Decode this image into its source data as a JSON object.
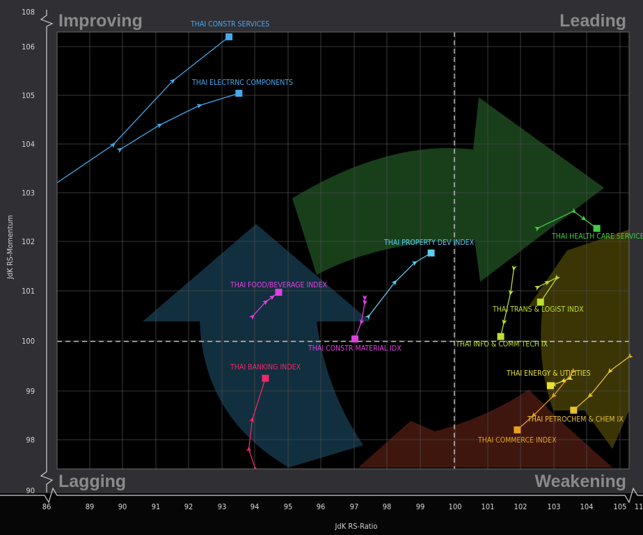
{
  "chart_data": {
    "type": "scatter",
    "variant": "relative-rotation-graph",
    "xlabel": "JdK RS-Ratio",
    "ylabel": "JdK RS-Momentum",
    "xlim": [
      86,
      105.5
    ],
    "ylim": [
      97.3,
      107
    ],
    "x_ticks": [
      "86",
      "89",
      "90",
      "91",
      "92",
      "93",
      "94",
      "95",
      "96",
      "97",
      "98",
      "99",
      "100",
      "101",
      "102",
      "103",
      "104",
      "105",
      "11"
    ],
    "y_ticks": [
      "98",
      "99",
      "100",
      "101",
      "102",
      "103",
      "104",
      "105",
      "106",
      "108"
    ],
    "y_axis_break_label": "90",
    "quadrants": {
      "top_left": "Improving",
      "top_right": "Leading",
      "bottom_left": "Lagging",
      "bottom_right": "Weakening"
    },
    "center": {
      "x": 100,
      "y": 100
    },
    "grid": true,
    "series": [
      {
        "name": "THAI CONSTR SERVICES",
        "color": "#46a8ec",
        "points": [
          [
            86.2,
            102.4
          ],
          [
            89.7,
            104.0
          ],
          [
            91.5,
            105.3
          ],
          [
            93.2,
            106.2
          ]
        ]
      },
      {
        "name": "THAI ELECTRNC COMPONENTS",
        "color": "#46a8ec",
        "points": [
          [
            89.9,
            103.9
          ],
          [
            91.1,
            104.4
          ],
          [
            92.3,
            104.8
          ],
          [
            93.5,
            105.05
          ]
        ]
      },
      {
        "name": "THAI PROPERTY DEV INDEX",
        "color": "#5ccdee",
        "points": [
          [
            97.4,
            100.5
          ],
          [
            98.2,
            101.2
          ],
          [
            98.8,
            101.6
          ],
          [
            99.3,
            101.8
          ]
        ]
      },
      {
        "name": "THAI HEALTH CARE SERVICE",
        "color": "#44cc44",
        "points": [
          [
            102.5,
            102.3
          ],
          [
            103.6,
            102.65
          ],
          [
            103.9,
            102.5
          ],
          [
            104.3,
            102.3
          ]
        ]
      },
      {
        "name": "THAI FOOD/BEVERAGE INDEX",
        "color": "#e040e0",
        "points": [
          [
            93.9,
            100.5
          ],
          [
            94.3,
            100.8
          ],
          [
            94.5,
            100.9
          ],
          [
            94.7,
            101.0
          ]
        ]
      },
      {
        "name": "THAI CONSTR MATERIAL IDX",
        "color": "#e040e0",
        "points": [
          [
            97.3,
            100.9
          ],
          [
            97.3,
            100.8
          ],
          [
            97.2,
            100.4
          ],
          [
            97.0,
            100.05
          ]
        ]
      },
      {
        "name": "THAI TRANS & LOGIST INDX",
        "color": "#bbe030",
        "points": [
          [
            102.5,
            101.1
          ],
          [
            102.8,
            101.2
          ],
          [
            103.1,
            101.3
          ],
          [
            102.6,
            100.8
          ]
        ]
      },
      {
        "name": "THAI INFO & COMM TECH IX",
        "color": "#bbe030",
        "points": [
          [
            101.8,
            101.5
          ],
          [
            101.7,
            101.0
          ],
          [
            101.5,
            100.4
          ],
          [
            101.4,
            100.1
          ]
        ]
      },
      {
        "name": "THAI BANKING INDEX",
        "color": "#ee2866",
        "points": [
          [
            94.0,
            97.4
          ],
          [
            93.8,
            97.8
          ],
          [
            93.9,
            98.4
          ],
          [
            94.3,
            99.25
          ]
        ]
      },
      {
        "name": "THAI ENERGY & UTILITIES",
        "color": "#e8e030",
        "points": [
          [
            103.5,
            99.25
          ],
          [
            103.3,
            99.2
          ],
          [
            103.0,
            99.12
          ],
          [
            102.9,
            99.1
          ]
        ]
      },
      {
        "name": "THAI PETROCHEM & CHEM IX",
        "color": "#e8c030",
        "points": [
          [
            105.3,
            99.7
          ],
          [
            104.7,
            99.4
          ],
          [
            104.1,
            98.9
          ],
          [
            103.6,
            98.6
          ]
        ]
      },
      {
        "name": "THAI COMMERCE INDEX",
        "color": "#e8a020",
        "points": [
          [
            103.6,
            99.4
          ],
          [
            103.0,
            98.9
          ],
          [
            102.4,
            98.5
          ],
          [
            101.9,
            98.2
          ]
        ]
      }
    ]
  }
}
